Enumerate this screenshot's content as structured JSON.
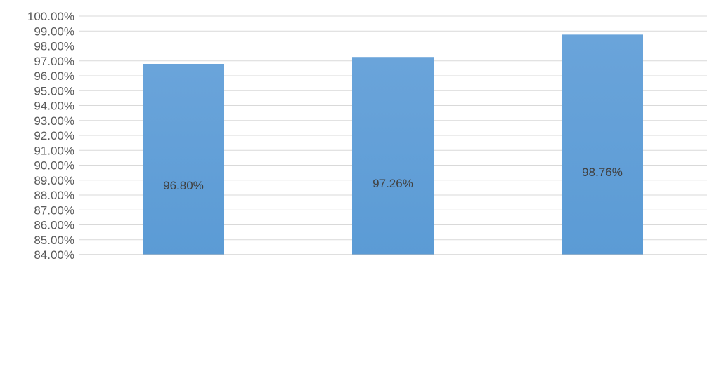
{
  "chart_data": {
    "type": "bar",
    "title": "",
    "xlabel": "",
    "ylabel": "",
    "ylim": [
      0.84,
      1.0
    ],
    "y_ticks": [
      "84.00%",
      "85.00%",
      "86.00%",
      "87.00%",
      "88.00%",
      "89.00%",
      "90.00%",
      "91.00%",
      "92.00%",
      "93.00%",
      "94.00%",
      "95.00%",
      "96.00%",
      "97.00%",
      "98.00%",
      "99.00%",
      "100.00%"
    ],
    "grid": true,
    "categories": [
      "",
      "",
      ""
    ],
    "values": [
      0.968,
      0.9726,
      0.9876
    ],
    "data_labels": [
      "96.80%",
      "97.26%",
      "98.76%"
    ],
    "bar_color": "#5b9bd5",
    "bar_color_light": "#6aa4da"
  }
}
